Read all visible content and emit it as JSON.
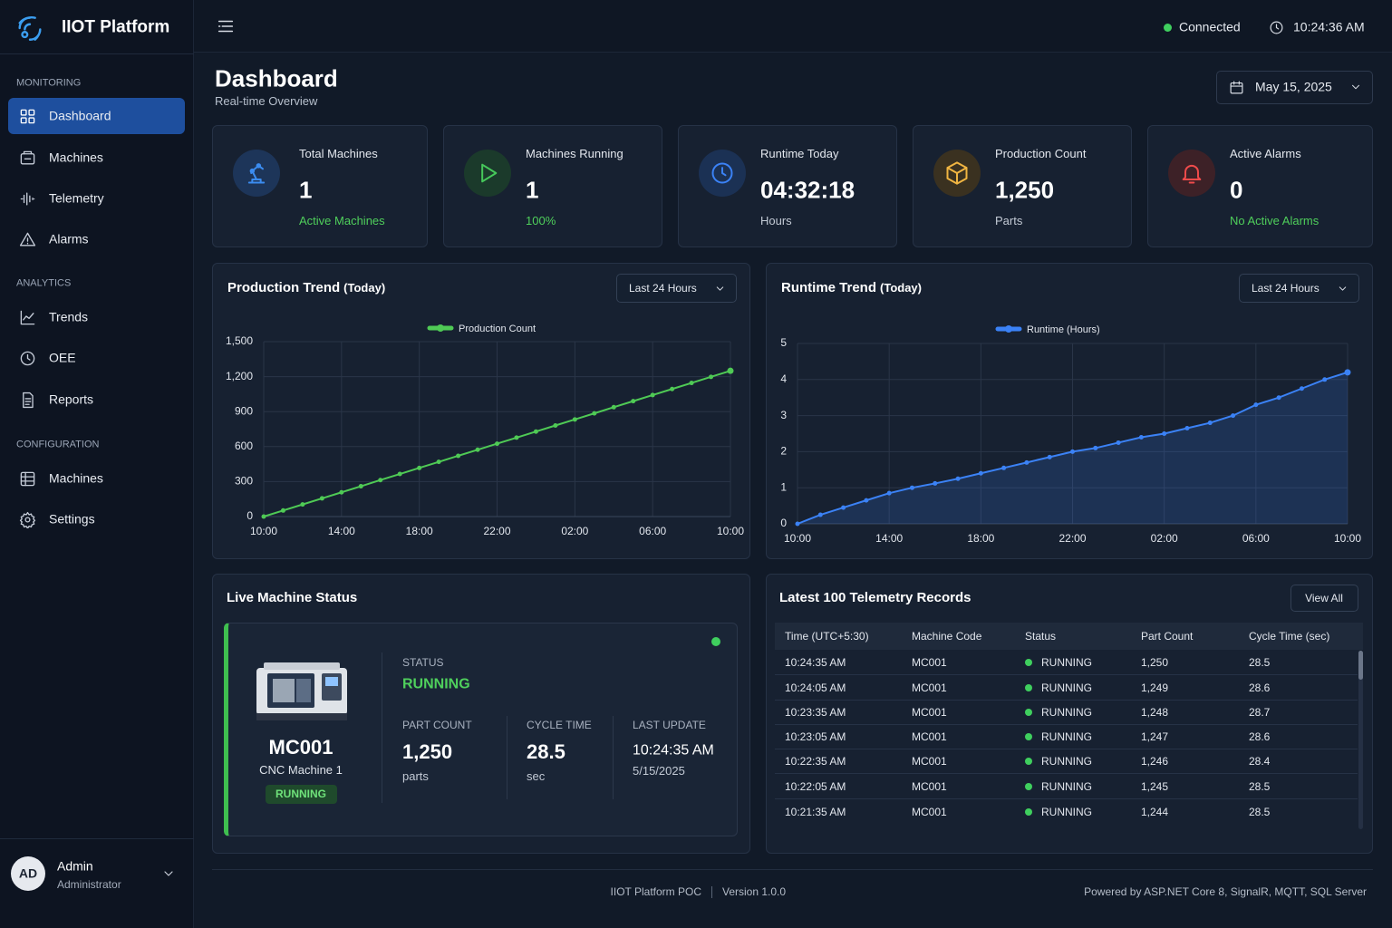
{
  "brand": "IIOT Platform",
  "nav": [
    {
      "section": "MONITORING",
      "items": [
        "Dashboard",
        "Machines",
        "Telemetry",
        "Alarms"
      ]
    },
    {
      "section": "ANALYTICS",
      "items": [
        "Trends",
        "OEE",
        "Reports"
      ]
    },
    {
      "section": "CONFIGURATION",
      "items": [
        "Machines",
        "Settings"
      ]
    }
  ],
  "user": {
    "initials": "AD",
    "name": "Admin",
    "role": "Administrator"
  },
  "topbar": {
    "status": "Connected",
    "time": "10:24:36 AM"
  },
  "page": {
    "title": "Dashboard",
    "subtitle": "Real-time Overview",
    "date": "May 15, 2025"
  },
  "kpis": [
    {
      "label": "Total Machines",
      "value": "1",
      "note": "Active Machines"
    },
    {
      "label": "Machines Running",
      "value": "1",
      "note": "100%"
    },
    {
      "label": "Runtime Today",
      "value": "04:32:18",
      "note": "Hours"
    },
    {
      "label": "Production Count",
      "value": "1,250",
      "note": "Parts"
    },
    {
      "label": "Active Alarms",
      "value": "0",
      "note": "No Active Alarms"
    }
  ],
  "chart_data": [
    {
      "type": "line",
      "title": "Production Trend",
      "subtitle": "(Today)",
      "range_selector": "Last 24 Hours",
      "categories": [
        "10:00",
        null,
        null,
        null,
        "14:00",
        null,
        null,
        null,
        "18:00",
        null,
        null,
        null,
        "22:00",
        null,
        null,
        null,
        "02:00",
        null,
        null,
        null,
        "06:00",
        null,
        null,
        null,
        "10:00"
      ],
      "series": [
        {
          "name": "Production Count",
          "color": "#4fca55",
          "values": [
            0,
            52,
            104,
            156,
            208,
            260,
            313,
            365,
            417,
            469,
            521,
            573,
            625,
            677,
            729,
            781,
            833,
            885,
            938,
            990,
            1042,
            1094,
            1146,
            1198,
            1250
          ]
        }
      ],
      "ylim": [
        0,
        1500
      ],
      "yticks": [
        0,
        300,
        600,
        900,
        {
          "value": 1200,
          "label": "1,200"
        },
        {
          "value": 1500,
          "label": "1,500"
        }
      ],
      "grid": true,
      "legend": "top",
      "area": false
    },
    {
      "type": "line",
      "title": "Runtime Trend",
      "subtitle": "(Today)",
      "range_selector": "Last 24 Hours",
      "categories": [
        "10:00",
        null,
        null,
        null,
        "14:00",
        null,
        null,
        null,
        "18:00",
        null,
        null,
        null,
        "22:00",
        null,
        null,
        null,
        "02:00",
        null,
        null,
        null,
        "06:00",
        null,
        null,
        null,
        "10:00"
      ],
      "series": [
        {
          "name": "Runtime (Hours)",
          "color": "#3b82f6",
          "values": [
            0,
            0.25,
            0.45,
            0.65,
            0.85,
            1.0,
            1.12,
            1.25,
            1.4,
            1.55,
            1.7,
            1.85,
            2.0,
            2.1,
            2.25,
            2.4,
            2.5,
            2.65,
            2.8,
            3.0,
            3.3,
            3.5,
            3.75,
            4.0,
            4.2
          ]
        }
      ],
      "ylim": [
        0,
        5
      ],
      "yticks": [
        0,
        1,
        2,
        3,
        4,
        5
      ],
      "grid": true,
      "legend": "top",
      "area": true
    }
  ],
  "live": {
    "title": "Live Machine Status",
    "code": "MC001",
    "name": "CNC Machine 1",
    "badge": "RUNNING",
    "status_label": "STATUS",
    "status": "RUNNING",
    "part_count_label": "PART COUNT",
    "part_count": "1,250",
    "part_unit": "parts",
    "cycle_label": "CYCLE TIME",
    "cycle": "28.5",
    "cycle_unit": "sec",
    "update_label": "LAST UPDATE",
    "update_time": "10:24:35 AM",
    "update_date": "5/15/2025"
  },
  "telemetry": {
    "title": "Latest 100 Telemetry Records",
    "button": "View All",
    "columns": [
      "Time (UTC+5:30)",
      "Machine Code",
      "Status",
      "Part Count",
      "Cycle Time (sec)"
    ],
    "rows": [
      [
        "10:24:35 AM",
        "MC001",
        "RUNNING",
        "1,250",
        "28.5"
      ],
      [
        "10:24:05 AM",
        "MC001",
        "RUNNING",
        "1,249",
        "28.6"
      ],
      [
        "10:23:35 AM",
        "MC001",
        "RUNNING",
        "1,248",
        "28.7"
      ],
      [
        "10:23:05 AM",
        "MC001",
        "RUNNING",
        "1,247",
        "28.6"
      ],
      [
        "10:22:35 AM",
        "MC001",
        "RUNNING",
        "1,246",
        "28.4"
      ],
      [
        "10:22:05 AM",
        "MC001",
        "RUNNING",
        "1,245",
        "28.5"
      ],
      [
        "10:21:35 AM",
        "MC001",
        "RUNNING",
        "1,244",
        "28.5"
      ]
    ]
  },
  "footer": {
    "left": "IIOT Platform POC",
    "version": "Version 1.0.0",
    "right": "Powered by ASP.NET Core 8, SignalR, MQTT, SQL Server"
  }
}
